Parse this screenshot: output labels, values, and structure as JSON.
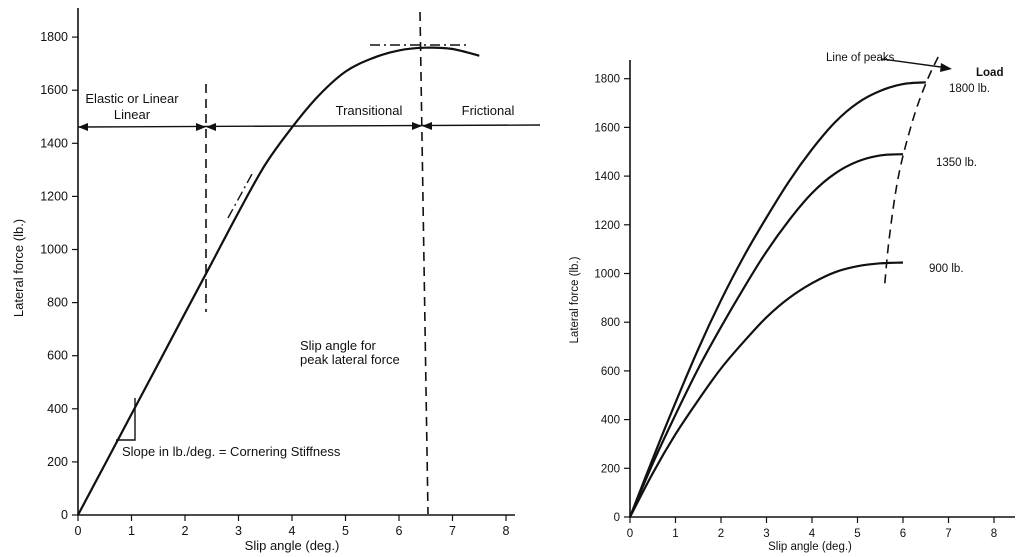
{
  "chart_data": [
    {
      "type": "line",
      "title": "",
      "xlabel": "Slip angle (deg.)",
      "ylabel": "Lateral force (lb.)",
      "xlim": [
        0,
        8
      ],
      "ylim": [
        0,
        1900
      ],
      "x_ticks": [
        "0",
        "1",
        "2",
        "3",
        "4",
        "5",
        "6",
        "7",
        "8"
      ],
      "y_ticks": [
        "0",
        "200",
        "400",
        "600",
        "800",
        "1000",
        "1200",
        "1400",
        "1600",
        "1800"
      ],
      "series": [
        {
          "x": [
            0,
            0.5,
            1,
            1.5,
            2,
            2.5,
            3,
            3.5,
            4,
            4.5,
            5,
            5.5,
            6,
            6.5,
            7,
            7.5
          ],
          "values": [
            0,
            190,
            380,
            570,
            760,
            950,
            1140,
            1320,
            1460,
            1580,
            1670,
            1720,
            1750,
            1760,
            1755,
            1730
          ]
        }
      ],
      "regions": [
        "Elastic or Linear",
        "Transitional",
        "Frictional"
      ],
      "annotations": {
        "peak_note": [
          "Slip angle for",
          "peak lateral force"
        ],
        "slope_note": "Slope in lb./deg. = Cornering Stiffness"
      },
      "reference_lines": {
        "region_arrow_y": 1450,
        "elastic_limit_x": 2.45,
        "peak_x": 6.45
      }
    },
    {
      "type": "line",
      "title": "",
      "xlabel": "Slip angle (deg.)",
      "ylabel": "Lateral force (lb.)",
      "xlim": [
        0,
        8
      ],
      "ylim": [
        0,
        1900
      ],
      "x_ticks": [
        "0",
        "1",
        "2",
        "3",
        "4",
        "5",
        "6",
        "7",
        "8"
      ],
      "y_ticks": [
        "0",
        "200",
        "400",
        "600",
        "800",
        "1000",
        "1200",
        "1400",
        "1600",
        "1800"
      ],
      "legend_title": "Load",
      "series": [
        {
          "name": "1800 lb.",
          "x": [
            0,
            0.5,
            1,
            1.5,
            2,
            2.5,
            3,
            3.5,
            4,
            4.5,
            5,
            5.5,
            6,
            6.5
          ],
          "values": [
            0,
            240,
            470,
            690,
            890,
            1070,
            1230,
            1380,
            1510,
            1620,
            1700,
            1750,
            1778,
            1785
          ]
        },
        {
          "name": "1350 lb.",
          "x": [
            0,
            0.5,
            1,
            1.5,
            2,
            2.5,
            3,
            3.5,
            4,
            4.5,
            5,
            5.5,
            6
          ],
          "values": [
            0,
            220,
            420,
            610,
            780,
            940,
            1090,
            1220,
            1330,
            1410,
            1460,
            1485,
            1490
          ]
        },
        {
          "name": "900 lb.",
          "x": [
            0,
            0.5,
            1,
            1.5,
            2,
            2.5,
            3,
            3.5,
            4,
            4.5,
            5,
            5.5,
            6
          ],
          "values": [
            0,
            180,
            340,
            480,
            610,
            720,
            820,
            900,
            960,
            1005,
            1030,
            1042,
            1045
          ]
        }
      ],
      "peak_line": {
        "label": "Line of peaks",
        "x": [
          5.6,
          5.7,
          5.9,
          6.2,
          6.5,
          6.8
        ],
        "values": [
          960,
          1150,
          1400,
          1620,
          1780,
          1900
        ]
      }
    }
  ]
}
